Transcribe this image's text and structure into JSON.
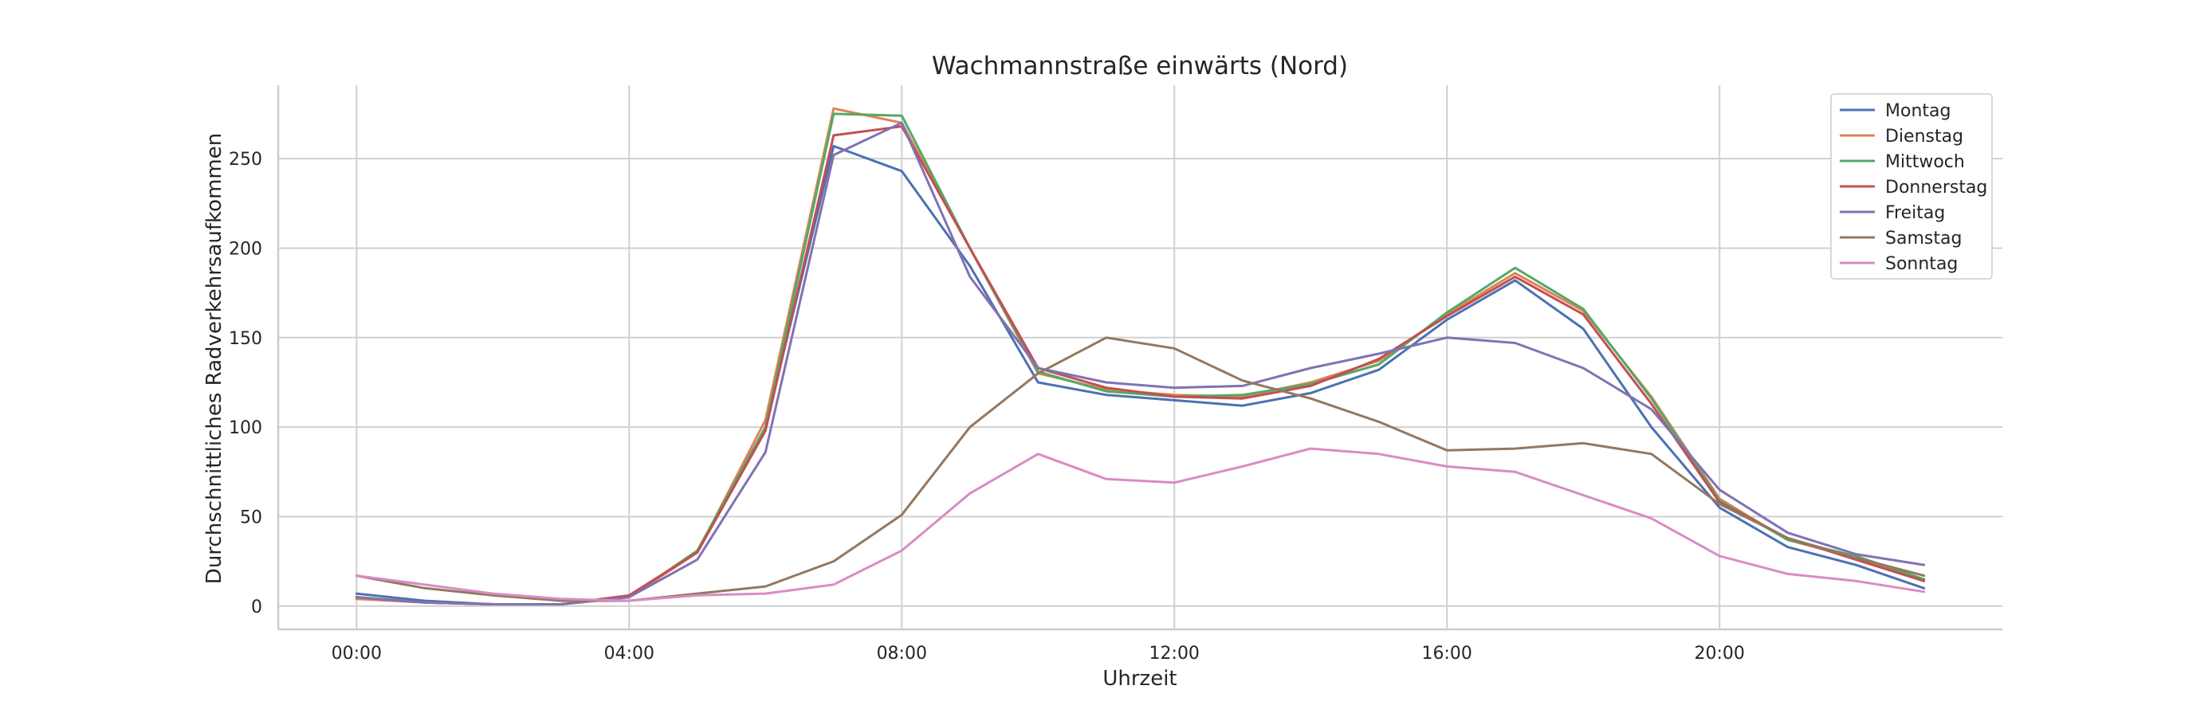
{
  "chart_data": {
    "type": "line",
    "title": "Wachmannstraße einwärts (Nord)",
    "xlabel": "Uhrzeit",
    "ylabel": "Durchschnittliches Radverkehrsaufkommen",
    "xlim": [
      -1.15,
      24.15
    ],
    "ylim": [
      -13,
      291
    ],
    "xticks": [
      0,
      4,
      8,
      12,
      16,
      20
    ],
    "xtick_labels": [
      "00:00",
      "04:00",
      "08:00",
      "12:00",
      "16:00",
      "20:00"
    ],
    "yticks": [
      0,
      50,
      100,
      150,
      200,
      250
    ],
    "ytick_labels": [
      "0",
      "50",
      "100",
      "150",
      "200",
      "250"
    ],
    "grid": true,
    "legend_position": "top-right",
    "x": [
      0,
      1,
      2,
      3,
      4,
      5,
      6,
      7,
      8,
      9,
      10,
      11,
      12,
      13,
      14,
      15,
      16,
      17,
      18,
      19,
      20,
      21,
      22,
      23
    ],
    "series": [
      {
        "name": "Montag",
        "color": "#4c72b0",
        "values": [
          7,
          3,
          1,
          1,
          5,
          30,
          100,
          257,
          243,
          190,
          125,
          118,
          115,
          112,
          119,
          132,
          160,
          182,
          155,
          100,
          55,
          33,
          23,
          10
        ]
      },
      {
        "name": "Dienstag",
        "color": "#dd8452",
        "values": [
          4,
          2,
          1,
          1,
          5,
          30,
          104,
          278,
          270,
          200,
          130,
          121,
          118,
          117,
          125,
          137,
          163,
          186,
          165,
          117,
          60,
          37,
          27,
          15
        ]
      },
      {
        "name": "Mittwoch",
        "color": "#55a868",
        "values": [
          5,
          2,
          1,
          1,
          5,
          31,
          100,
          275,
          274,
          200,
          131,
          120,
          117,
          118,
          124,
          135,
          164,
          189,
          166,
          116,
          59,
          37,
          28,
          15
        ]
      },
      {
        "name": "Donnerstag",
        "color": "#c44e52",
        "values": [
          5,
          2,
          1,
          1,
          6,
          30,
          98,
          263,
          268,
          200,
          133,
          122,
          117,
          116,
          123,
          138,
          162,
          184,
          163,
          113,
          58,
          38,
          26,
          14
        ]
      },
      {
        "name": "Freitag",
        "color": "#8172b3",
        "values": [
          5,
          2,
          1,
          1,
          5,
          26,
          86,
          252,
          270,
          184,
          133,
          125,
          122,
          123,
          133,
          141,
          150,
          147,
          133,
          110,
          65,
          41,
          29,
          23
        ]
      },
      {
        "name": "Samstag",
        "color": "#937860",
        "values": [
          17,
          10,
          6,
          3,
          3,
          7,
          11,
          25,
          51,
          100,
          130,
          150,
          144,
          126,
          116,
          103,
          87,
          88,
          91,
          85,
          57,
          38,
          27,
          17
        ]
      },
      {
        "name": "Sonntag",
        "color": "#da8bc3",
        "values": [
          17,
          12,
          7,
          4,
          3,
          6,
          7,
          12,
          31,
          63,
          85,
          71,
          69,
          78,
          88,
          85,
          78,
          75,
          62,
          49,
          28,
          18,
          14,
          8
        ]
      }
    ]
  }
}
